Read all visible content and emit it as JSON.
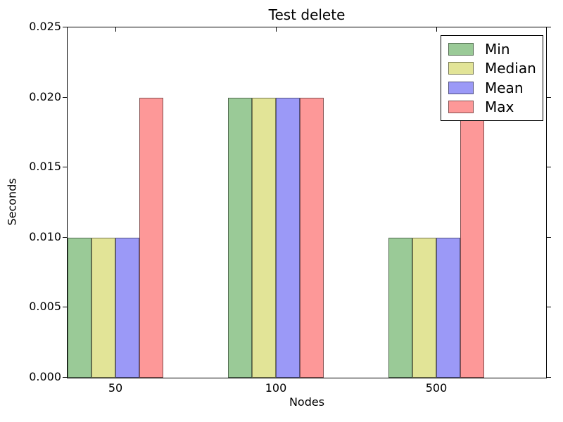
{
  "chart_data": {
    "type": "bar",
    "title": "Test delete",
    "xlabel": "Nodes",
    "ylabel": "Seconds",
    "categories": [
      "50",
      "100",
      "500"
    ],
    "series": [
      {
        "name": "Min",
        "fill": "#9aca97",
        "values": [
          0.01,
          0.02,
          0.01
        ]
      },
      {
        "name": "Median",
        "fill": "#e2e497",
        "values": [
          0.01,
          0.02,
          0.01
        ]
      },
      {
        "name": "Mean",
        "fill": "#9b99f7",
        "values": [
          0.01,
          0.02,
          0.01
        ]
      },
      {
        "name": "Max",
        "fill": "#fd9898",
        "values": [
          0.02,
          0.02,
          0.02
        ]
      }
    ],
    "edge_color": "rgba(0,0,0,0.48)",
    "ylim": [
      0,
      0.025
    ],
    "yticks": [
      0,
      0.005,
      0.01,
      0.015,
      0.02,
      0.025
    ],
    "ytick_labels": [
      "0.000",
      "0.005",
      "0.010",
      "0.015",
      "0.020",
      "0.025"
    ],
    "grid": false,
    "legend_position": "upper right",
    "legend_entries": [
      "Min",
      "Median",
      "Mean",
      "Max"
    ],
    "background": "#ffffff",
    "spine_color": "#000000"
  }
}
